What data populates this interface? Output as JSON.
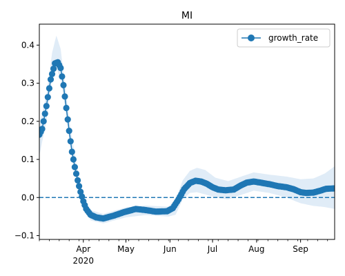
{
  "chart_data": {
    "type": "line",
    "title": "MI",
    "xlabel": "",
    "ylabel": "",
    "x_start": "2020-03-01",
    "x_end": "2020-09-25",
    "xlim": [
      "2020-03-01",
      "2020-09-25"
    ],
    "ylim": [
      -0.11,
      0.455
    ],
    "x_ticks": [
      {
        "date": "2020-04-01",
        "label": "Apr",
        "sublabel": "2020"
      },
      {
        "date": "2020-05-01",
        "label": "May",
        "sublabel": ""
      },
      {
        "date": "2020-06-01",
        "label": "Jun",
        "sublabel": ""
      },
      {
        "date": "2020-07-01",
        "label": "Jul",
        "sublabel": ""
      },
      {
        "date": "2020-08-01",
        "label": "Aug",
        "sublabel": ""
      },
      {
        "date": "2020-09-01",
        "label": "Sep",
        "sublabel": ""
      }
    ],
    "y_ticks": [
      {
        "value": -0.1,
        "label": "−0.1"
      },
      {
        "value": 0.0,
        "label": "0.0"
      },
      {
        "value": 0.1,
        "label": "0.1"
      },
      {
        "value": 0.2,
        "label": "0.2"
      },
      {
        "value": 0.3,
        "label": "0.3"
      },
      {
        "value": 0.4,
        "label": "0.4"
      }
    ],
    "reference_line": {
      "y": 0.0,
      "style": "dashed",
      "color": "#1f77b4"
    },
    "legend": {
      "placement": "top-right",
      "entries": [
        "growth_rate"
      ]
    },
    "grid": false,
    "series": [
      {
        "name": "growth_rate",
        "color": "#1f77b4",
        "band_color": "#c6dcf0",
        "knots": [
          [
            "2020-03-01",
            0.165
          ],
          [
            "2020-03-03",
            0.18
          ],
          [
            "2020-03-06",
            0.24
          ],
          [
            "2020-03-09",
            0.31
          ],
          [
            "2020-03-12",
            0.352
          ],
          [
            "2020-03-14",
            0.355
          ],
          [
            "2020-03-16",
            0.34
          ],
          [
            "2020-03-18",
            0.295
          ],
          [
            "2020-03-20",
            0.235
          ],
          [
            "2020-03-22",
            0.175
          ],
          [
            "2020-03-24",
            0.12
          ],
          [
            "2020-03-26",
            0.08
          ],
          [
            "2020-03-28",
            0.045
          ],
          [
            "2020-03-30",
            0.015
          ],
          [
            "2020-04-01",
            -0.01
          ],
          [
            "2020-04-03",
            -0.03
          ],
          [
            "2020-04-06",
            -0.045
          ],
          [
            "2020-04-10",
            -0.052
          ],
          [
            "2020-04-15",
            -0.055
          ],
          [
            "2020-04-22",
            -0.048
          ],
          [
            "2020-04-30",
            -0.038
          ],
          [
            "2020-05-08",
            -0.03
          ],
          [
            "2020-05-15",
            -0.033
          ],
          [
            "2020-05-22",
            -0.037
          ],
          [
            "2020-05-30",
            -0.036
          ],
          [
            "2020-06-03",
            -0.028
          ],
          [
            "2020-06-07",
            -0.005
          ],
          [
            "2020-06-11",
            0.022
          ],
          [
            "2020-06-15",
            0.038
          ],
          [
            "2020-06-19",
            0.044
          ],
          [
            "2020-06-23",
            0.042
          ],
          [
            "2020-06-27",
            0.036
          ],
          [
            "2020-07-01",
            0.027
          ],
          [
            "2020-07-05",
            0.021
          ],
          [
            "2020-07-10",
            0.019
          ],
          [
            "2020-07-16",
            0.021
          ],
          [
            "2020-07-21",
            0.032
          ],
          [
            "2020-07-25",
            0.039
          ],
          [
            "2020-07-30",
            0.042
          ],
          [
            "2020-08-04",
            0.039
          ],
          [
            "2020-08-10",
            0.035
          ],
          [
            "2020-08-16",
            0.03
          ],
          [
            "2020-08-22",
            0.027
          ],
          [
            "2020-08-27",
            0.022
          ],
          [
            "2020-09-01",
            0.014
          ],
          [
            "2020-09-05",
            0.012
          ],
          [
            "2020-09-10",
            0.013
          ],
          [
            "2020-09-15",
            0.018
          ],
          [
            "2020-09-19",
            0.023
          ],
          [
            "2020-09-25",
            0.024
          ]
        ],
        "band_upper": [
          [
            "2020-03-01",
            0.19
          ],
          [
            "2020-03-06",
            0.27
          ],
          [
            "2020-03-10",
            0.38
          ],
          [
            "2020-03-13",
            0.425
          ],
          [
            "2020-03-16",
            0.39
          ],
          [
            "2020-03-19",
            0.3
          ],
          [
            "2020-03-23",
            0.18
          ],
          [
            "2020-03-27",
            0.09
          ],
          [
            "2020-04-01",
            0.0
          ],
          [
            "2020-04-06",
            -0.033
          ],
          [
            "2020-04-15",
            -0.043
          ],
          [
            "2020-05-01",
            -0.026
          ],
          [
            "2020-05-15",
            -0.021
          ],
          [
            "2020-05-31",
            -0.024
          ],
          [
            "2020-06-05",
            -0.005
          ],
          [
            "2020-06-10",
            0.045
          ],
          [
            "2020-06-15",
            0.07
          ],
          [
            "2020-06-20",
            0.078
          ],
          [
            "2020-06-26",
            0.072
          ],
          [
            "2020-07-03",
            0.052
          ],
          [
            "2020-07-12",
            0.043
          ],
          [
            "2020-07-22",
            0.056
          ],
          [
            "2020-07-30",
            0.066
          ],
          [
            "2020-08-10",
            0.06
          ],
          [
            "2020-08-22",
            0.055
          ],
          [
            "2020-09-01",
            0.048
          ],
          [
            "2020-09-10",
            0.05
          ],
          [
            "2020-09-18",
            0.063
          ],
          [
            "2020-09-25",
            0.082
          ]
        ],
        "band_lower": [
          [
            "2020-03-01",
            0.11
          ],
          [
            "2020-03-06",
            0.2
          ],
          [
            "2020-03-10",
            0.31
          ],
          [
            "2020-03-13",
            0.34
          ],
          [
            "2020-03-16",
            0.31
          ],
          [
            "2020-03-19",
            0.24
          ],
          [
            "2020-03-23",
            0.13
          ],
          [
            "2020-03-27",
            0.055
          ],
          [
            "2020-04-01",
            -0.02
          ],
          [
            "2020-04-06",
            -0.06
          ],
          [
            "2020-04-15",
            -0.068
          ],
          [
            "2020-05-01",
            -0.052
          ],
          [
            "2020-05-15",
            -0.046
          ],
          [
            "2020-05-31",
            -0.05
          ],
          [
            "2020-06-05",
            -0.045
          ],
          [
            "2020-06-10",
            -0.005
          ],
          [
            "2020-06-15",
            0.012
          ],
          [
            "2020-06-20",
            0.014
          ],
          [
            "2020-06-26",
            0.008
          ],
          [
            "2020-07-03",
            0.0
          ],
          [
            "2020-07-12",
            -0.005
          ],
          [
            "2020-07-22",
            0.008
          ],
          [
            "2020-07-30",
            0.018
          ],
          [
            "2020-08-10",
            0.012
          ],
          [
            "2020-08-22",
            0.0
          ],
          [
            "2020-09-01",
            -0.015
          ],
          [
            "2020-09-10",
            -0.022
          ],
          [
            "2020-09-18",
            -0.025
          ],
          [
            "2020-09-25",
            -0.03
          ]
        ]
      }
    ]
  }
}
